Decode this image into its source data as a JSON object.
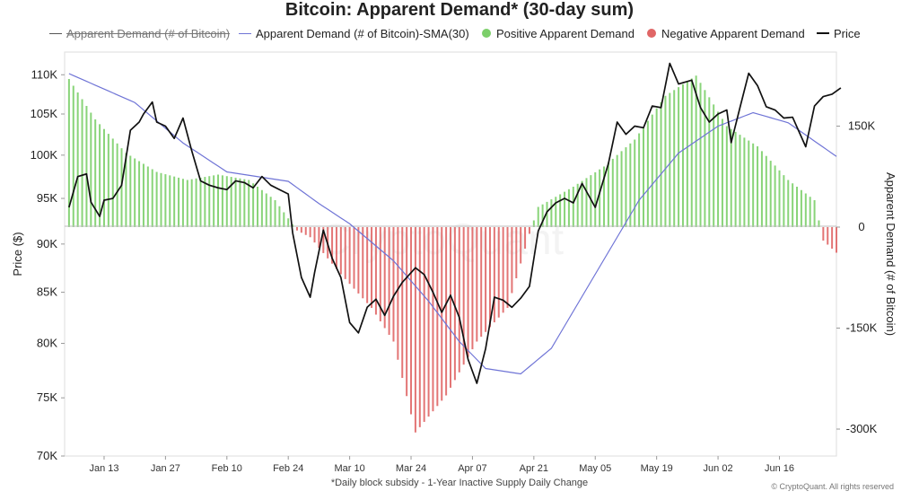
{
  "chart_data": {
    "type": "bar+line",
    "title": "Bitcoin: Apparent Demand* (30-day sum)",
    "legend": [
      {
        "label": "Apparent Demand (# of Bitcoin)",
        "type": "line",
        "color": "#555555",
        "hidden": true
      },
      {
        "label": "Apparent Demand (# of Bitcoin)-SMA(30)",
        "type": "line",
        "color": "#6f74d6",
        "hidden": false
      },
      {
        "label": "Positive Apparent Demand",
        "type": "bar",
        "color": "#7ccf6a",
        "hidden": false
      },
      {
        "label": "Negative Apparent Demand",
        "type": "bar",
        "color": "#e06666",
        "hidden": false
      },
      {
        "label": "Price",
        "type": "line",
        "color": "#111111",
        "hidden": false
      }
    ],
    "xlabel": "*Daily block subsidy - 1-Year Inactive Supply Daily Change",
    "x_ticks": [
      "Jan 13",
      "Jan 27",
      "Feb 10",
      "Feb 24",
      "Mar 10",
      "Mar 24",
      "Apr 07",
      "Apr 21",
      "May 05",
      "May 19",
      "Jun 02",
      "Jun 16"
    ],
    "x_range": [
      "2025-01-04",
      "2025-06-29"
    ],
    "y_left": {
      "label": "Price ($)",
      "ticks": [
        "110K",
        "105K",
        "100K",
        "95K",
        "90K",
        "85K",
        "80K",
        "75K",
        "70K"
      ],
      "tick_values": [
        110000,
        105000,
        100000,
        95000,
        90000,
        85000,
        80000,
        75000,
        70000
      ],
      "scale": "log",
      "range": [
        70000,
        113000
      ]
    },
    "y_right": {
      "label": "Apparent Demand (# of Bitcoin)",
      "ticks": [
        "150K",
        "0",
        "-150K",
        "-300K"
      ],
      "tick_values": [
        150000,
        0,
        -150000,
        -300000
      ],
      "range": [
        -340000,
        260000
      ]
    },
    "watermark": "CryptoQuant",
    "credit": "© CryptoQuant. All rights reserved",
    "series": {
      "demand": [
        [
          "2025-01-04",
          230000
        ],
        [
          "2025-01-11",
          160000
        ],
        [
          "2025-01-18",
          110000
        ],
        [
          "2025-01-25",
          82000
        ],
        [
          "2025-02-01",
          70000
        ],
        [
          "2025-02-08",
          78000
        ],
        [
          "2025-02-15",
          70000
        ],
        [
          "2025-02-21",
          40000
        ],
        [
          "2025-02-26",
          -5000
        ],
        [
          "2025-03-01",
          -15000
        ],
        [
          "2025-03-08",
          -70000
        ],
        [
          "2025-03-15",
          -120000
        ],
        [
          "2025-03-20",
          -170000
        ],
        [
          "2025-03-25",
          -305000
        ],
        [
          "2025-04-01",
          -250000
        ],
        [
          "2025-04-08",
          -170000
        ],
        [
          "2025-04-15",
          -120000
        ],
        [
          "2025-04-20",
          -10000
        ],
        [
          "2025-04-22",
          30000
        ],
        [
          "2025-04-30",
          60000
        ],
        [
          "2025-05-07",
          90000
        ],
        [
          "2025-05-14",
          130000
        ],
        [
          "2025-05-21",
          195000
        ],
        [
          "2025-05-28",
          225000
        ],
        [
          "2025-06-04",
          150000
        ],
        [
          "2025-06-11",
          120000
        ],
        [
          "2025-06-18",
          70000
        ],
        [
          "2025-06-24",
          40000
        ],
        [
          "2025-06-26",
          -20000
        ],
        [
          "2025-06-29",
          -38000
        ]
      ],
      "demand_sma30": [
        [
          "2025-01-05",
          228000
        ],
        [
          "2025-01-20",
          185000
        ],
        [
          "2025-01-31",
          125000
        ],
        [
          "2025-02-10",
          82000
        ],
        [
          "2025-02-24",
          68000
        ],
        [
          "2025-03-03",
          35000
        ],
        [
          "2025-03-10",
          5000
        ],
        [
          "2025-03-20",
          -50000
        ],
        [
          "2025-03-28",
          -110000
        ],
        [
          "2025-04-04",
          -170000
        ],
        [
          "2025-04-10",
          -210000
        ],
        [
          "2025-04-18",
          -218000
        ],
        [
          "2025-04-25",
          -180000
        ],
        [
          "2025-05-05",
          -70000
        ],
        [
          "2025-05-15",
          40000
        ],
        [
          "2025-05-24",
          110000
        ],
        [
          "2025-06-02",
          150000
        ],
        [
          "2025-06-10",
          170000
        ],
        [
          "2025-06-18",
          155000
        ],
        [
          "2025-06-29",
          105000
        ]
      ],
      "price": [
        [
          "2025-01-05",
          94000
        ],
        [
          "2025-01-07",
          97500
        ],
        [
          "2025-01-09",
          97800
        ],
        [
          "2025-01-10",
          94600
        ],
        [
          "2025-01-12",
          93000
        ],
        [
          "2025-01-13",
          94800
        ],
        [
          "2025-01-15",
          95000
        ],
        [
          "2025-01-17",
          96500
        ],
        [
          "2025-01-19",
          103000
        ],
        [
          "2025-01-21",
          104000
        ],
        [
          "2025-01-22",
          105000
        ],
        [
          "2025-01-24",
          106500
        ],
        [
          "2025-01-25",
          104000
        ],
        [
          "2025-01-27",
          103500
        ],
        [
          "2025-01-29",
          102000
        ],
        [
          "2025-01-31",
          104500
        ],
        [
          "2025-02-02",
          100500
        ],
        [
          "2025-02-04",
          97000
        ],
        [
          "2025-02-06",
          96500
        ],
        [
          "2025-02-08",
          96200
        ],
        [
          "2025-02-10",
          96000
        ],
        [
          "2025-02-12",
          97000
        ],
        [
          "2025-02-14",
          96800
        ],
        [
          "2025-02-16",
          96200
        ],
        [
          "2025-02-18",
          97500
        ],
        [
          "2025-02-20",
          96500
        ],
        [
          "2025-02-22",
          96000
        ],
        [
          "2025-02-24",
          95500
        ],
        [
          "2025-02-25",
          91200
        ],
        [
          "2025-02-27",
          86500
        ],
        [
          "2025-03-01",
          84500
        ],
        [
          "2025-03-02",
          87000
        ],
        [
          "2025-03-04",
          91500
        ],
        [
          "2025-03-06",
          88500
        ],
        [
          "2025-03-08",
          86500
        ],
        [
          "2025-03-10",
          82000
        ],
        [
          "2025-03-12",
          81000
        ],
        [
          "2025-03-14",
          83500
        ],
        [
          "2025-03-16",
          84300
        ],
        [
          "2025-03-18",
          82700
        ],
        [
          "2025-03-20",
          84600
        ],
        [
          "2025-03-22",
          86000
        ],
        [
          "2025-03-25",
          87500
        ],
        [
          "2025-03-27",
          86800
        ],
        [
          "2025-03-29",
          85000
        ],
        [
          "2025-03-31",
          83000
        ],
        [
          "2025-04-02",
          84700
        ],
        [
          "2025-04-04",
          82500
        ],
        [
          "2025-04-06",
          78500
        ],
        [
          "2025-04-08",
          76300
        ],
        [
          "2025-04-10",
          79500
        ],
        [
          "2025-04-12",
          84500
        ],
        [
          "2025-04-14",
          84200
        ],
        [
          "2025-04-16",
          83500
        ],
        [
          "2025-04-18",
          84400
        ],
        [
          "2025-04-20",
          85600
        ],
        [
          "2025-04-22",
          91400
        ],
        [
          "2025-04-24",
          93500
        ],
        [
          "2025-04-26",
          94500
        ],
        [
          "2025-04-28",
          95000
        ],
        [
          "2025-04-30",
          94500
        ],
        [
          "2025-05-02",
          96700
        ],
        [
          "2025-05-05",
          94000
        ],
        [
          "2025-05-08",
          99000
        ],
        [
          "2025-05-10",
          104000
        ],
        [
          "2025-05-12",
          102500
        ],
        [
          "2025-05-14",
          103500
        ],
        [
          "2025-05-16",
          103300
        ],
        [
          "2025-05-18",
          106000
        ],
        [
          "2025-05-20",
          105800
        ],
        [
          "2025-05-22",
          111500
        ],
        [
          "2025-05-24",
          108800
        ],
        [
          "2025-05-27",
          109300
        ],
        [
          "2025-05-29",
          105800
        ],
        [
          "2025-05-31",
          104000
        ],
        [
          "2025-06-02",
          105000
        ],
        [
          "2025-06-04",
          105500
        ],
        [
          "2025-06-05",
          101500
        ],
        [
          "2025-06-07",
          105800
        ],
        [
          "2025-06-09",
          110200
        ],
        [
          "2025-06-11",
          108600
        ],
        [
          "2025-06-13",
          105900
        ],
        [
          "2025-06-15",
          105500
        ],
        [
          "2025-06-17",
          104500
        ],
        [
          "2025-06-19",
          104600
        ],
        [
          "2025-06-22",
          101000
        ],
        [
          "2025-06-24",
          106000
        ],
        [
          "2025-06-26",
          107200
        ],
        [
          "2025-06-28",
          107500
        ],
        [
          "2025-06-30",
          108300
        ]
      ]
    }
  }
}
